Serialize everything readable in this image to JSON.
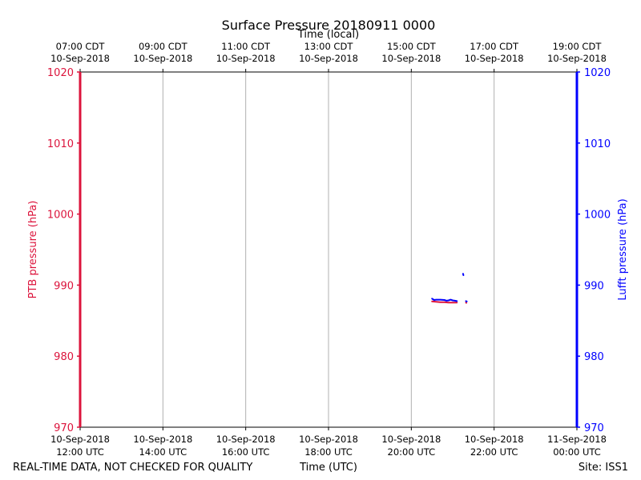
{
  "chart_data": {
    "type": "line",
    "title": "Surface Pressure 20180911 0000",
    "top_axis_label": "Time (local)",
    "bottom_axis_label": "Time (UTC)",
    "ylabel_left": "PTB pressure (hPa)",
    "ylabel_right": "Lufft pressure (hPa)",
    "footer_left": "REAL-TIME DATA, NOT CHECKED FOR QUALITY",
    "footer_right": "Site: ISS1",
    "ylim": [
      970,
      1020
    ],
    "yticks": [
      "970",
      "980",
      "990",
      "1000",
      "1010",
      "1020"
    ],
    "xlim_hours_utc": [
      12,
      24
    ],
    "x_ticks_utc": [
      {
        "line1": "10-Sep-2018",
        "line2": "12:00 UTC"
      },
      {
        "line1": "10-Sep-2018",
        "line2": "14:00 UTC"
      },
      {
        "line1": "10-Sep-2018",
        "line2": "16:00 UTC"
      },
      {
        "line1": "10-Sep-2018",
        "line2": "18:00 UTC"
      },
      {
        "line1": "10-Sep-2018",
        "line2": "20:00 UTC"
      },
      {
        "line1": "10-Sep-2018",
        "line2": "22:00 UTC"
      },
      {
        "line1": "11-Sep-2018",
        "line2": "00:00 UTC"
      }
    ],
    "x_ticks_local": [
      {
        "line1": "07:00 CDT",
        "line2": "10-Sep-2018"
      },
      {
        "line1": "09:00 CDT",
        "line2": "10-Sep-2018"
      },
      {
        "line1": "11:00 CDT",
        "line2": "10-Sep-2018"
      },
      {
        "line1": "13:00 CDT",
        "line2": "10-Sep-2018"
      },
      {
        "line1": "15:00 CDT",
        "line2": "10-Sep-2018"
      },
      {
        "line1": "17:00 CDT",
        "line2": "10-Sep-2018"
      },
      {
        "line1": "19:00 CDT",
        "line2": "10-Sep-2018"
      }
    ],
    "colors": {
      "ptb": "#dc143c",
      "lufft": "#0000ff",
      "grid": "#b0b0b0",
      "axis": "#000000"
    },
    "series": [
      {
        "name": "PTB pressure",
        "axis": "left",
        "color": "#dc143c",
        "segments": [
          [
            [
              20.5,
              987.7
            ],
            [
              20.6,
              987.65
            ],
            [
              20.7,
              987.6
            ],
            [
              20.8,
              987.6
            ],
            [
              20.9,
              987.55
            ],
            [
              21.0,
              987.55
            ],
            [
              21.1,
              987.55
            ]
          ],
          [
            [
              21.32,
              987.55
            ],
            [
              21.33,
              987.5
            ]
          ]
        ]
      },
      {
        "name": "Lufft pressure",
        "axis": "right",
        "color": "#0000ff",
        "segments": [
          [
            [
              20.5,
              988.1
            ],
            [
              20.55,
              987.9
            ],
            [
              20.6,
              987.95
            ],
            [
              20.7,
              987.95
            ],
            [
              20.8,
              987.9
            ],
            [
              20.85,
              987.8
            ],
            [
              20.9,
              987.85
            ],
            [
              20.95,
              987.95
            ],
            [
              21.0,
              987.85
            ],
            [
              21.05,
              987.8
            ],
            [
              21.1,
              987.75
            ]
          ],
          [
            [
              21.25,
              991.6
            ],
            [
              21.26,
              991.4
            ]
          ],
          [
            [
              21.32,
              987.75
            ],
            [
              21.34,
              987.7
            ]
          ]
        ]
      }
    ]
  }
}
